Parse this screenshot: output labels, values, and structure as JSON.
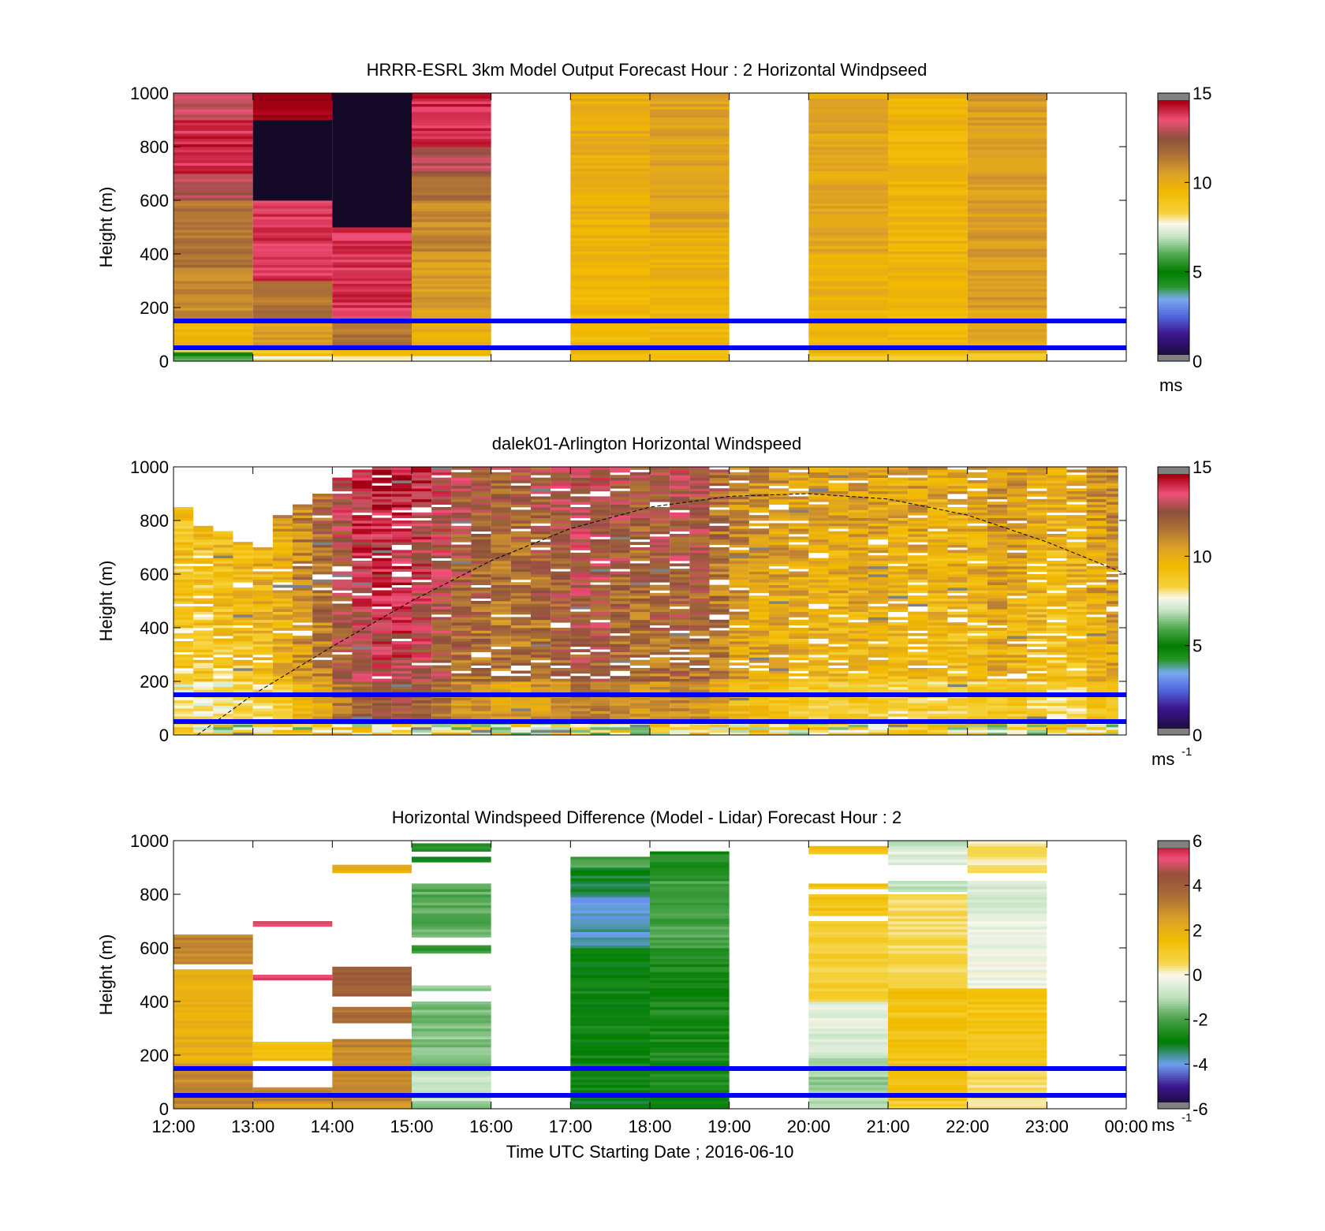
{
  "figure_xlabel": "Time UTC  Starting Date ; 2016-06-10",
  "chart_data": [
    {
      "type": "heatmap",
      "title": "HRRR-ESRL 3km Model Output   Forecast Hour : 2 Horizontal Windpseed",
      "ylabel": "Height (m)",
      "xlim": [
        12,
        24
      ],
      "ylim": [
        0,
        1000
      ],
      "y_ticks": [
        "0",
        "200",
        "400",
        "600",
        "800",
        "1000"
      ],
      "x_ticks": [
        "12:00",
        "13:00",
        "14:00",
        "15:00",
        "16:00",
        "17:00",
        "18:00",
        "19:00",
        "20:00",
        "21:00",
        "22:00",
        "23:00",
        "00:00"
      ],
      "show_x_ticklabels": false,
      "colorbar": {
        "min": 0,
        "max": 15,
        "ticks": [
          "0",
          "5",
          "10",
          "15"
        ],
        "unit": "ms",
        "unit_sup": "",
        "palette": "speed"
      },
      "reference_lines_m": [
        50,
        150
      ],
      "columns": [
        {
          "start_hour": 12,
          "segments": [
            [
              0,
              20,
              6.0
            ],
            [
              20,
              35,
              5.0
            ],
            [
              35,
              60,
              8.0
            ],
            [
              60,
              150,
              9.5
            ],
            [
              150,
              350,
              11.0
            ],
            [
              350,
              600,
              11.5
            ],
            [
              600,
              700,
              13.0
            ],
            [
              700,
              900,
              14.0
            ],
            [
              900,
              1000,
              13.0
            ]
          ]
        },
        {
          "start_hour": 13,
          "segments": [
            [
              0,
              20,
              8.0
            ],
            [
              20,
              60,
              9.0
            ],
            [
              60,
              150,
              10.5
            ],
            [
              150,
              300,
              11.5
            ],
            [
              300,
              600,
              13.8
            ],
            [
              600,
              900,
              -1
            ],
            [
              900,
              1000,
              14.8
            ]
          ]
        },
        {
          "start_hour": 14,
          "segments": [
            [
              0,
              20,
              8.0
            ],
            [
              20,
              60,
              9.5
            ],
            [
              60,
              150,
              11.5
            ],
            [
              150,
              500,
              13.8
            ],
            [
              500,
              1000,
              -1
            ]
          ]
        },
        {
          "start_hour": 15,
          "segments": [
            [
              0,
              20,
              7.5
            ],
            [
              20,
              60,
              9.5
            ],
            [
              60,
              200,
              10.0
            ],
            [
              200,
              400,
              10.5
            ],
            [
              400,
              600,
              11.0
            ],
            [
              600,
              700,
              11.8
            ],
            [
              700,
              800,
              13.0
            ],
            [
              800,
              1000,
              14.0
            ]
          ]
        },
        {
          "start_hour": 17,
          "segments": [
            [
              0,
              200,
              9.5
            ],
            [
              200,
              400,
              9.5
            ],
            [
              400,
              700,
              9.8
            ],
            [
              700,
              1000,
              10.0
            ]
          ]
        },
        {
          "start_hour": 18,
          "segments": [
            [
              0,
              200,
              9.5
            ],
            [
              200,
              500,
              9.8
            ],
            [
              500,
              1000,
              10.3
            ]
          ]
        },
        {
          "start_hour": 20,
          "segments": [
            [
              0,
              20,
              8.5
            ],
            [
              20,
              200,
              9.5
            ],
            [
              200,
              400,
              9.8
            ],
            [
              400,
              1000,
              10.2
            ]
          ]
        },
        {
          "start_hour": 21,
          "segments": [
            [
              0,
              20,
              8.5
            ],
            [
              20,
              200,
              9.5
            ],
            [
              200,
              1000,
              9.7
            ]
          ]
        },
        {
          "start_hour": 22,
          "segments": [
            [
              0,
              30,
              9.0
            ],
            [
              30,
              200,
              10.2
            ],
            [
              200,
              1000,
              10.5
            ]
          ]
        }
      ]
    },
    {
      "type": "heatmap",
      "title": "dalek01-Arlington  Horizontal Windspeed",
      "ylabel": "Height (m)",
      "xlim": [
        12,
        24
      ],
      "ylim": [
        0,
        1000
      ],
      "y_ticks": [
        "0",
        "200",
        "400",
        "600",
        "800",
        "1000"
      ],
      "x_ticks": [
        "12:00",
        "13:00",
        "14:00",
        "15:00",
        "16:00",
        "17:00",
        "18:00",
        "19:00",
        "20:00",
        "21:00",
        "22:00",
        "23:00",
        "00:00"
      ],
      "show_x_ticklabels": false,
      "colorbar": {
        "min": 0,
        "max": 15,
        "ticks": [
          "0",
          "5",
          "10",
          "15"
        ],
        "unit": "ms",
        "unit_sup": "-1",
        "palette": "speed"
      },
      "reference_lines_m": [
        50,
        150
      ],
      "time_step_minutes": 15,
      "data_end_hour": 23.9,
      "column_profiles": [
        {
          "start_hour": 12.0,
          "top_m": 850,
          "mean_ms": 9.0
        },
        {
          "start_hour": 12.25,
          "top_m": 780,
          "mean_ms": 9.0
        },
        {
          "start_hour": 12.5,
          "top_m": 760,
          "mean_ms": 9.2
        },
        {
          "start_hour": 12.75,
          "top_m": 720,
          "mean_ms": 9.4
        },
        {
          "start_hour": 13.0,
          "top_m": 700,
          "mean_ms": 9.6
        },
        {
          "start_hour": 13.25,
          "top_m": 820,
          "mean_ms": 10.0
        },
        {
          "start_hour": 13.5,
          "top_m": 860,
          "mean_ms": 10.8
        },
        {
          "start_hour": 13.75,
          "top_m": 900,
          "mean_ms": 11.5
        },
        {
          "start_hour": 14.0,
          "top_m": 960,
          "mean_ms": 12.5
        },
        {
          "start_hour": 14.25,
          "top_m": 990,
          "mean_ms": 13.2
        },
        {
          "start_hour": 14.5,
          "top_m": 1000,
          "mean_ms": 13.5
        },
        {
          "start_hour": 14.75,
          "top_m": 1000,
          "mean_ms": 13.5
        },
        {
          "start_hour": 15.0,
          "top_m": 1000,
          "mean_ms": 13.2
        },
        {
          "start_hour": 15.25,
          "top_m": 1000,
          "mean_ms": 12.6
        },
        {
          "start_hour": 15.5,
          "top_m": 1000,
          "mean_ms": 12.0
        },
        {
          "start_hour": 15.75,
          "top_m": 1000,
          "mean_ms": 11.8
        },
        {
          "start_hour": 16.0,
          "top_m": 1000,
          "mean_ms": 11.6
        },
        {
          "start_hour": 16.25,
          "top_m": 1000,
          "mean_ms": 11.6
        },
        {
          "start_hour": 16.5,
          "top_m": 1000,
          "mean_ms": 11.8
        },
        {
          "start_hour": 16.75,
          "top_m": 1000,
          "mean_ms": 12.2
        },
        {
          "start_hour": 17.0,
          "top_m": 1000,
          "mean_ms": 12.6
        },
        {
          "start_hour": 17.25,
          "top_m": 1000,
          "mean_ms": 12.4
        },
        {
          "start_hour": 17.5,
          "top_m": 1000,
          "mean_ms": 12.0
        },
        {
          "start_hour": 17.75,
          "top_m": 1000,
          "mean_ms": 11.8
        },
        {
          "start_hour": 18.0,
          "top_m": 1000,
          "mean_ms": 11.9
        },
        {
          "start_hour": 18.25,
          "top_m": 1000,
          "mean_ms": 12.2
        },
        {
          "start_hour": 18.5,
          "top_m": 1000,
          "mean_ms": 12.0
        },
        {
          "start_hour": 18.75,
          "top_m": 1000,
          "mean_ms": 11.4
        },
        {
          "start_hour": 19.0,
          "top_m": 1000,
          "mean_ms": 10.6
        },
        {
          "start_hour": 19.25,
          "top_m": 1000,
          "mean_ms": 10.3
        },
        {
          "start_hour": 19.5,
          "top_m": 1000,
          "mean_ms": 10.2
        },
        {
          "start_hour": 19.75,
          "top_m": 1000,
          "mean_ms": 10.0
        },
        {
          "start_hour": 20.0,
          "top_m": 1000,
          "mean_ms": 9.8
        },
        {
          "start_hour": 20.25,
          "top_m": 1000,
          "mean_ms": 9.8
        },
        {
          "start_hour": 20.5,
          "top_m": 1000,
          "mean_ms": 10.0
        },
        {
          "start_hour": 20.75,
          "top_m": 1000,
          "mean_ms": 9.8
        },
        {
          "start_hour": 21.0,
          "top_m": 1000,
          "mean_ms": 9.6
        },
        {
          "start_hour": 21.25,
          "top_m": 1000,
          "mean_ms": 9.8
        },
        {
          "start_hour": 21.5,
          "top_m": 1000,
          "mean_ms": 9.6
        },
        {
          "start_hour": 21.75,
          "top_m": 1000,
          "mean_ms": 9.6
        },
        {
          "start_hour": 22.0,
          "top_m": 1000,
          "mean_ms": 9.8
        },
        {
          "start_hour": 22.25,
          "top_m": 1000,
          "mean_ms": 10.2
        },
        {
          "start_hour": 22.5,
          "top_m": 1000,
          "mean_ms": 10.0
        },
        {
          "start_hour": 22.75,
          "top_m": 1000,
          "mean_ms": 9.6
        },
        {
          "start_hour": 23.0,
          "top_m": 1000,
          "mean_ms": 9.4
        },
        {
          "start_hour": 23.25,
          "top_m": 1000,
          "mean_ms": 9.6
        },
        {
          "start_hour": 23.5,
          "top_m": 1000,
          "mean_ms": 10.2
        },
        {
          "start_hour": 23.75,
          "top_m": 1000,
          "mean_ms": 10.4
        }
      ],
      "boundary_layer_curve": [
        {
          "hour": 12.3,
          "height_m": 0
        },
        {
          "hour": 13.0,
          "height_m": 150
        },
        {
          "hour": 14.0,
          "height_m": 330
        },
        {
          "hour": 15.0,
          "height_m": 500
        },
        {
          "hour": 16.0,
          "height_m": 650
        },
        {
          "hour": 17.0,
          "height_m": 770
        },
        {
          "hour": 18.0,
          "height_m": 850
        },
        {
          "hour": 19.0,
          "height_m": 890
        },
        {
          "hour": 20.0,
          "height_m": 900
        },
        {
          "hour": 21.0,
          "height_m": 880
        },
        {
          "hour": 22.0,
          "height_m": 820
        },
        {
          "hour": 23.0,
          "height_m": 720
        },
        {
          "hour": 24.0,
          "height_m": 600
        }
      ]
    },
    {
      "type": "heatmap",
      "title": "Horizontal Windspeed Difference (Model - Lidar) Forecast Hour : 2",
      "ylabel": "Height (m)",
      "xlim": [
        12,
        24
      ],
      "ylim": [
        0,
        1000
      ],
      "y_ticks": [
        "0",
        "200",
        "400",
        "600",
        "800",
        "1000"
      ],
      "x_ticks": [
        "12:00",
        "13:00",
        "14:00",
        "15:00",
        "16:00",
        "17:00",
        "18:00",
        "19:00",
        "20:00",
        "21:00",
        "22:00",
        "23:00",
        "00:00"
      ],
      "show_x_ticklabels": true,
      "colorbar": {
        "min": -6,
        "max": 6,
        "ticks": [
          "-6",
          "-4",
          "-2",
          "0",
          "2",
          "4",
          "6"
        ],
        "unit": "ms",
        "unit_sup": "-1",
        "palette": "difference"
      },
      "reference_lines_m": [
        50,
        150
      ],
      "columns": [
        {
          "start_hour": 12,
          "segments": [
            [
              0,
              40,
              3.0
            ],
            [
              40,
              170,
              3.0
            ],
            [
              170,
              520,
              2.0
            ],
            [
              540,
              650,
              3.0
            ]
          ]
        },
        {
          "start_hour": 13,
          "segments": [
            [
              0,
              20,
              2.0
            ],
            [
              20,
              80,
              3.0
            ],
            [
              180,
              250,
              1.5
            ],
            [
              480,
              500,
              5.2
            ],
            [
              680,
              700,
              5.0
            ]
          ]
        },
        {
          "start_hour": 14,
          "segments": [
            [
              0,
              30,
              2.5
            ],
            [
              30,
              260,
              3.0
            ],
            [
              320,
              380,
              3.5
            ],
            [
              420,
              500,
              4.0
            ],
            [
              500,
              530,
              4.2
            ],
            [
              880,
              910,
              2.0
            ]
          ]
        },
        {
          "start_hour": 15,
          "segments": [
            [
              0,
              30,
              -1.2
            ],
            [
              30,
              150,
              -0.8
            ],
            [
              150,
              400,
              -1.5
            ],
            [
              440,
              460,
              -1.5
            ],
            [
              580,
              610,
              -2.2
            ],
            [
              640,
              840,
              -1.8
            ],
            [
              920,
              940,
              -3.0
            ],
            [
              960,
              990,
              -2.5
            ]
          ]
        },
        {
          "start_hour": 17,
          "segments": [
            [
              0,
              50,
              -3.0
            ],
            [
              50,
              500,
              -2.8
            ],
            [
              500,
              600,
              -3.0
            ],
            [
              600,
              800,
              -3.8
            ],
            [
              800,
              900,
              -3.2
            ],
            [
              900,
              940,
              -2.0
            ]
          ]
        },
        {
          "start_hour": 18,
          "segments": [
            [
              0,
              50,
              -3.0
            ],
            [
              50,
              600,
              -2.6
            ],
            [
              600,
              850,
              -2.0
            ],
            [
              850,
              960,
              -2.6
            ]
          ]
        },
        {
          "start_hour": 20,
          "segments": [
            [
              0,
              40,
              -1.2
            ],
            [
              40,
              200,
              -1.2
            ],
            [
              200,
              400,
              -0.5
            ],
            [
              400,
              700,
              0.8
            ],
            [
              720,
              800,
              1.3
            ],
            [
              820,
              840,
              1.2
            ],
            [
              950,
              980,
              1.3
            ]
          ]
        },
        {
          "start_hour": 21,
          "segments": [
            [
              0,
              30,
              0.8
            ],
            [
              30,
              450,
              1.3
            ],
            [
              450,
              800,
              0.6
            ],
            [
              810,
              850,
              -0.8
            ],
            [
              910,
              970,
              -0.5
            ],
            [
              970,
              1000,
              -1.0
            ]
          ]
        },
        {
          "start_hour": 22,
          "segments": [
            [
              0,
              40,
              0.3
            ],
            [
              40,
              150,
              0.5
            ],
            [
              150,
              450,
              1.2
            ],
            [
              450,
              700,
              -0.2
            ],
            [
              700,
              850,
              -0.6
            ],
            [
              880,
              1000,
              0.4
            ]
          ]
        }
      ]
    }
  ]
}
